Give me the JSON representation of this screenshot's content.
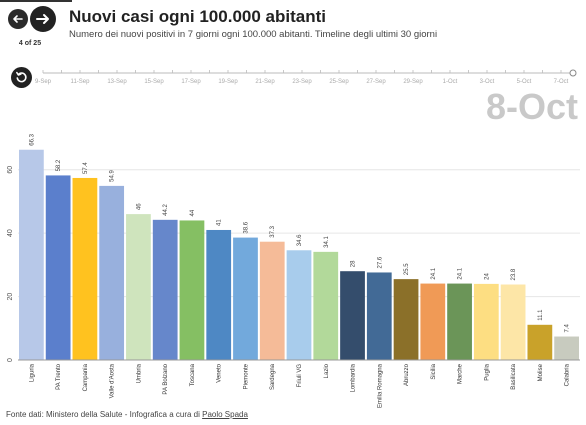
{
  "nav": {
    "counter": "4 of 25",
    "prev_icon": "arrow-left-icon",
    "next_icon": "arrow-right-icon",
    "replay_icon": "replay-icon"
  },
  "header": {
    "title": "Nuovi casi ogni 100.000 abitanti",
    "subtitle": "Numero dei nuovi positivi in 7 giorni ogni 100.000 abitanti. Timeline degli ultimi 30 giorni"
  },
  "timeline": {
    "labels": [
      "9-Sep",
      "11-Sep",
      "13-Sep",
      "15-Sep",
      "17-Sep",
      "19-Sep",
      "21-Sep",
      "23-Sep",
      "25-Sep",
      "27-Sep",
      "29-Sep",
      "1-Oct",
      "3-Oct",
      "5-Oct",
      "7-Oct"
    ],
    "current": "8-Oct"
  },
  "footer": {
    "text": "Fonte dati: Ministero della Salute - Infografica a cura di ",
    "link": "Paolo Spada"
  },
  "chart_data": {
    "type": "bar",
    "title": "Nuovi casi ogni 100.000 abitanti",
    "categories": [
      "Liguria",
      "PA Trento",
      "Campania",
      "Valle d'Aosta",
      "Umbria",
      "PA Bolzano",
      "Toscana",
      "Veneto",
      "Piemonte",
      "Sardegna",
      "Friuli VG",
      "Lazio",
      "Lombardia",
      "Emilia Romagna",
      "Abruzzo",
      "Sicilia",
      "Marche",
      "Puglia",
      "Basilicata",
      "Molise",
      "Calabria"
    ],
    "values": [
      66.3,
      58.2,
      57.4,
      54.9,
      46,
      44.2,
      44,
      41,
      38.6,
      37.3,
      34.6,
      34.1,
      28,
      27.6,
      25.5,
      24.1,
      24.1,
      24,
      23.8,
      11.1,
      7.4
    ],
    "value_labels": [
      "66.3",
      "58.2",
      "57.4",
      "54.9",
      "46",
      "44.2",
      "44",
      "41",
      "38.6",
      "37.3",
      "34.6",
      "34.1",
      "28",
      "27.6",
      "25.5",
      "24.1",
      "24.1",
      "24",
      "23.8",
      "11.1",
      "7.4"
    ],
    "colors": [
      "#b7c8e8",
      "#5b7fcc",
      "#ffc21f",
      "#98b0dd",
      "#cfe4bd",
      "#6687cb",
      "#85bf63",
      "#4e88c4",
      "#72a9dc",
      "#f5bb98",
      "#a8ccec",
      "#b2d99a",
      "#344d6c",
      "#426a96",
      "#8b7029",
      "#f09a56",
      "#6b9558",
      "#fdde82",
      "#fde6a7",
      "#c9a22a",
      "#c8cbbf"
    ],
    "y_ticks": [
      0,
      20,
      40,
      60
    ],
    "ylim": [
      0,
      70
    ],
    "grid": true
  }
}
